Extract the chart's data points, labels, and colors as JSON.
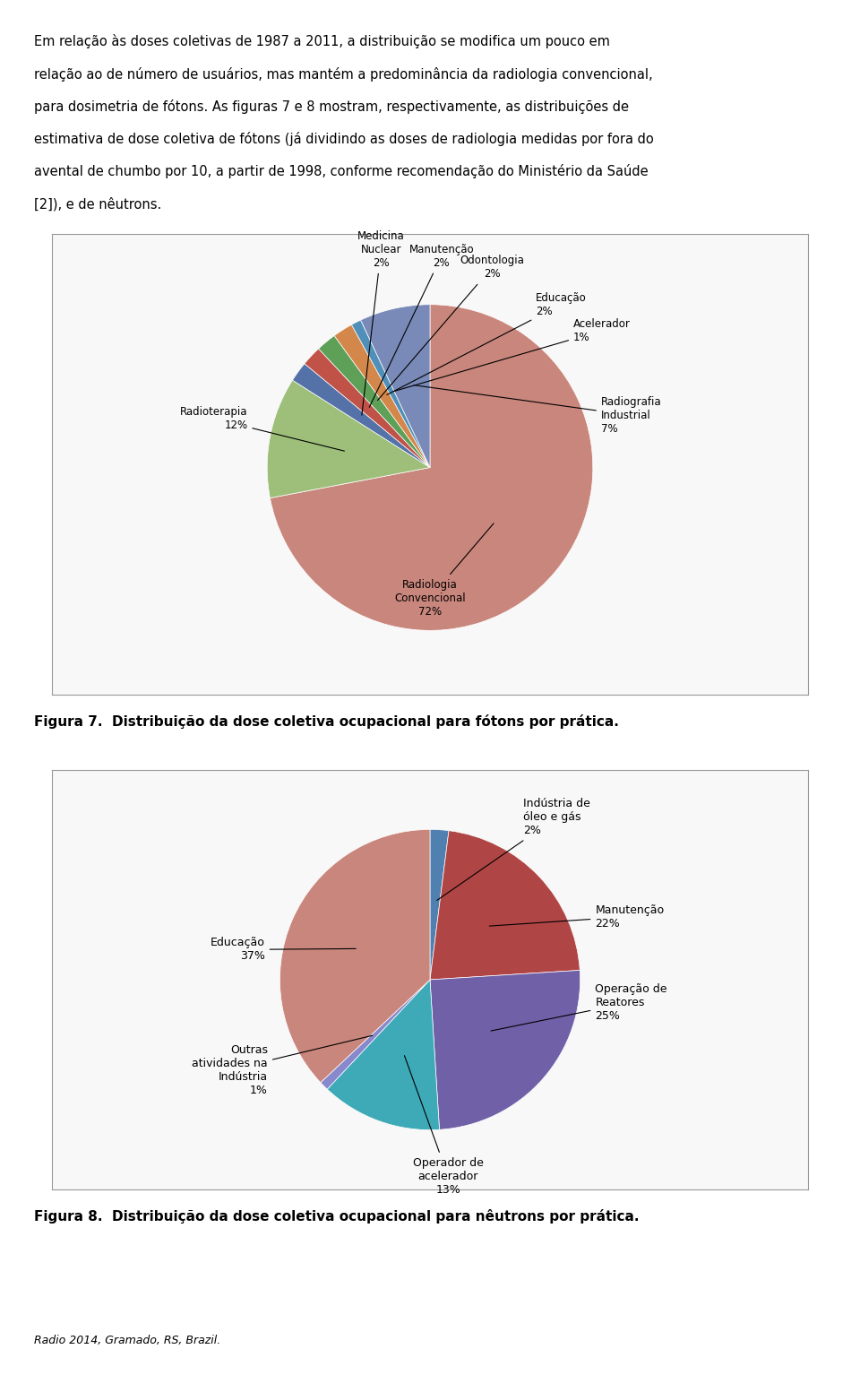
{
  "fig7": {
    "sizes": [
      72,
      12,
      2,
      2,
      2,
      2,
      1,
      7
    ],
    "colors": [
      "#c9867c",
      "#9dbf7a",
      "#5472a8",
      "#c05248",
      "#5fa058",
      "#d4874a",
      "#5090b8",
      "#7a8ab8"
    ],
    "caption": "Figura 7.  Distribuição da dose coletiva ocupacional para fótons por prática."
  },
  "fig8": {
    "sizes": [
      2,
      22,
      25,
      13,
      1,
      37
    ],
    "colors": [
      "#5080b0",
      "#b04545",
      "#7060a8",
      "#3eaab8",
      "#8888cc",
      "#c9867c"
    ],
    "caption": "Figura 8.  Distribuição da dose coletiva ocupacional para nêutrons por prática."
  },
  "text_lines": [
    "Em relação às doses coletivas de 1987 a 2011, a distribuição se modifica um pouco em",
    "relação ao de número de usuários, mas mantém a predominância da radiologia convencional,",
    "para dosimetria de fótons. As figuras 7 e 8 mostram, respectivamente, as distribuições de",
    "estimativa de dose coletiva de fótons (já dividindo as doses de radiologia medidas por fora do",
    "avental de chumbo por 10, a partir de 1998, conforme recomendação do Ministério da Saúde",
    "[2]), e de nêutrons."
  ],
  "footer": "Radio 2014, Gramado, RS, Brazil.",
  "bg_color": "#ffffff",
  "box_bg": "#f8f8f8",
  "box_edge": "#999999"
}
